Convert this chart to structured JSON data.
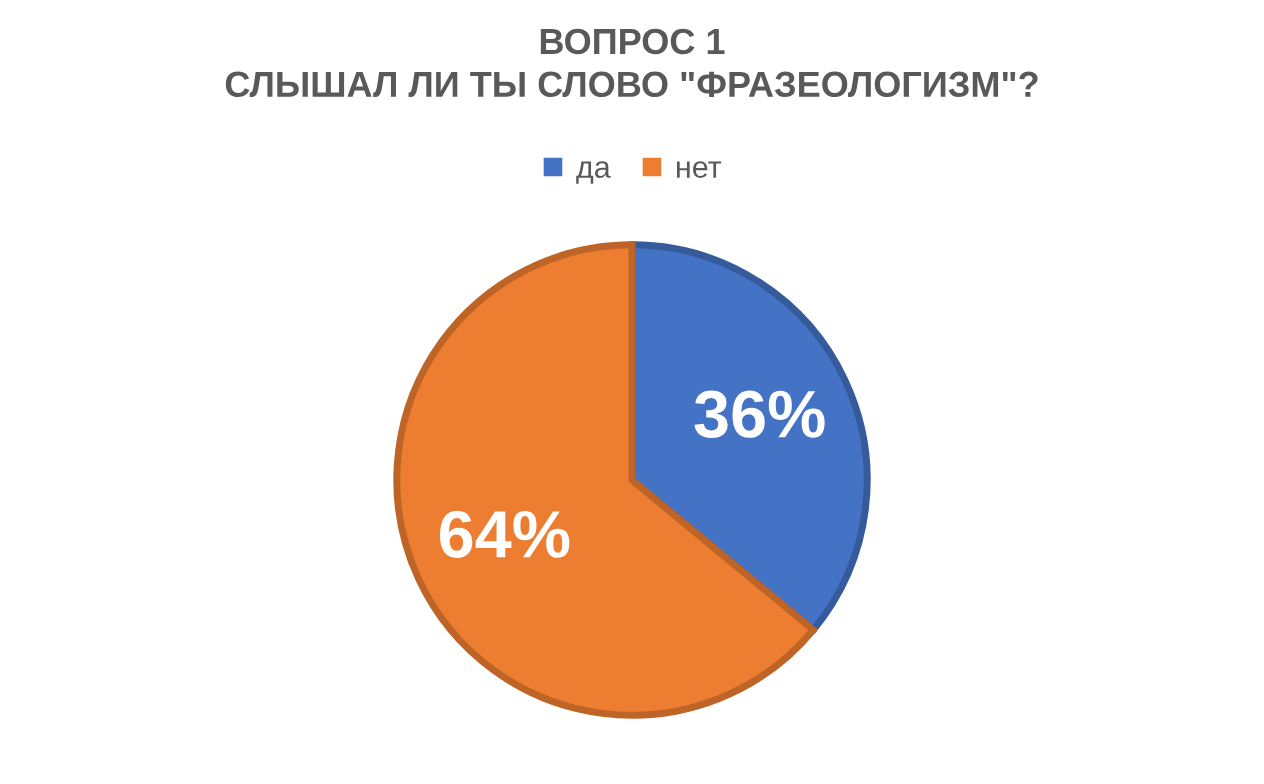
{
  "chart_data": {
    "type": "pie",
    "title": "ВОПРОС 1\nСЛЫШАЛ ЛИ ТЫ СЛОВО \"ФРАЗЕОЛОГИЗМ\"?",
    "categories": [
      "да",
      "нет"
    ],
    "values": [
      36,
      64
    ],
    "colors": [
      "#4472c4",
      "#ed7d31"
    ],
    "value_labels": [
      "36%",
      "64%"
    ],
    "legend": "top"
  }
}
